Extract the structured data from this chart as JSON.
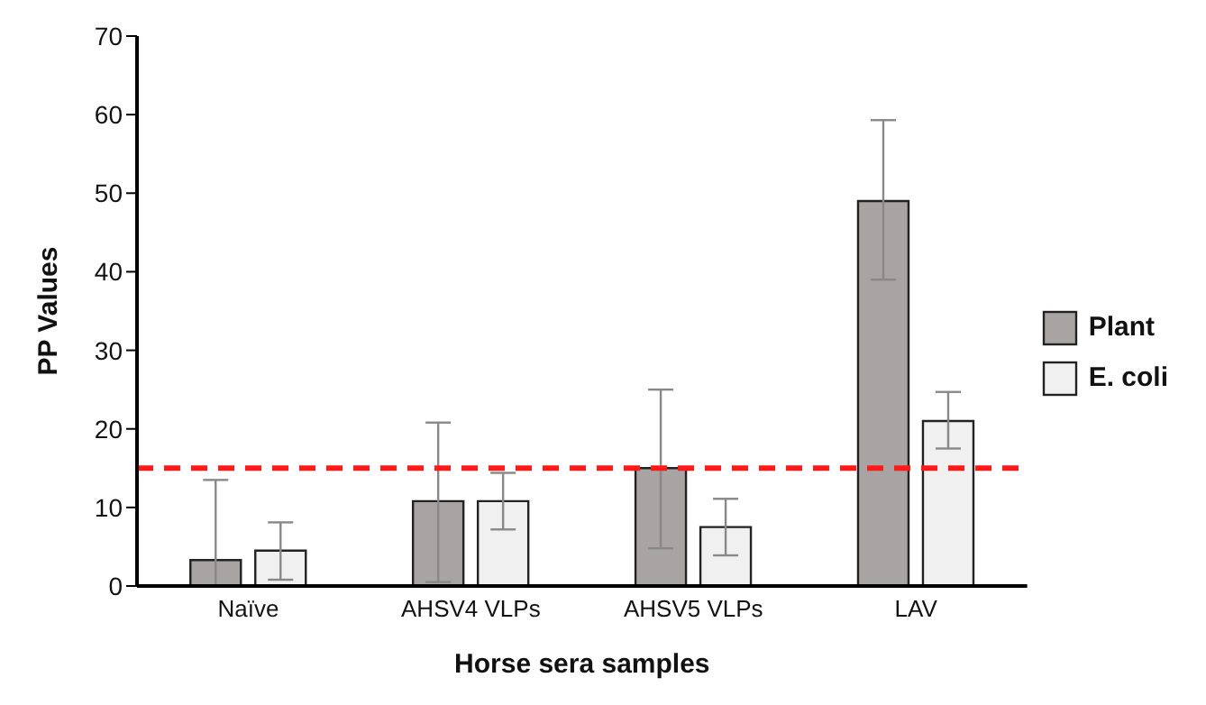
{
  "chart_data": {
    "type": "bar",
    "xlabel": "Horse sera samples",
    "ylabel": "PP Values",
    "categories": [
      "Naïve",
      "AHSV4 VLPs",
      "AHSV5 VLPs",
      "LAV"
    ],
    "series": [
      {
        "name": "Plant",
        "color": "#a8a4a3",
        "values": [
          3.3,
          10.8,
          15,
          49
        ],
        "errors": [
          [
            0,
            13.5
          ],
          [
            0.5,
            20.8
          ],
          [
            4.8,
            25
          ],
          [
            39,
            59.3
          ]
        ]
      },
      {
        "name": "E. coli",
        "color": "#f0f0f0",
        "values": [
          4.5,
          10.8,
          7.5,
          21
        ],
        "errors": [
          [
            0.8,
            8.1
          ],
          [
            7.2,
            14.4
          ],
          [
            3.9,
            11.1
          ],
          [
            17.5,
            24.7
          ]
        ]
      }
    ],
    "ylim": [
      0,
      70
    ],
    "yticks": [
      0,
      10,
      20,
      30,
      40,
      50,
      60,
      70
    ],
    "grid": false,
    "legend": "right",
    "ref_lines": [
      {
        "axis": "y",
        "value": 15,
        "color": "#ff1a1a",
        "line_style": "dashed"
      }
    ]
  }
}
